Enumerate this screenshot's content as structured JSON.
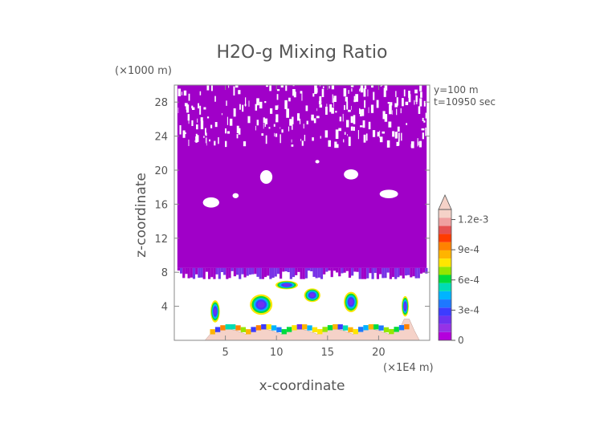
{
  "chart_data": {
    "type": "heatmap",
    "title": "H2O-g Mixing Ratio",
    "xlabel": "x-coordinate",
    "ylabel": "z-coordinate",
    "x_unit": "(×1E4 m)",
    "y_unit": "(×1000 m)",
    "xlim": [
      0,
      25
    ],
    "ylim": [
      0,
      30
    ],
    "x_ticks": [
      5,
      10,
      15,
      20
    ],
    "y_ticks": [
      4,
      8,
      12,
      16,
      20,
      24,
      28
    ],
    "annotations": [
      "y=100 m",
      "t=10950 sec"
    ],
    "colorbar": {
      "min": 0,
      "max": 0.0013,
      "extend": "max",
      "labels": [
        "0",
        "3e-4",
        "6e-4",
        "9e-4",
        "1.2e-3"
      ],
      "label_values": [
        0,
        0.0003,
        0.0006,
        0.0009,
        0.0012
      ],
      "colors": [
        "#b400dc",
        "#9632e6",
        "#6e32f0",
        "#3c3cff",
        "#1e78ff",
        "#00b4ff",
        "#00dcb4",
        "#00dc3c",
        "#96e600",
        "#ffe600",
        "#ffb400",
        "#ff8200",
        "#ff3c00",
        "#e65050",
        "#f0a0a0",
        "#f5d2c8"
      ]
    },
    "colors": {
      "dry_background": "#a000c8",
      "terrain": "#f5d2c8",
      "text": "#555555"
    }
  }
}
